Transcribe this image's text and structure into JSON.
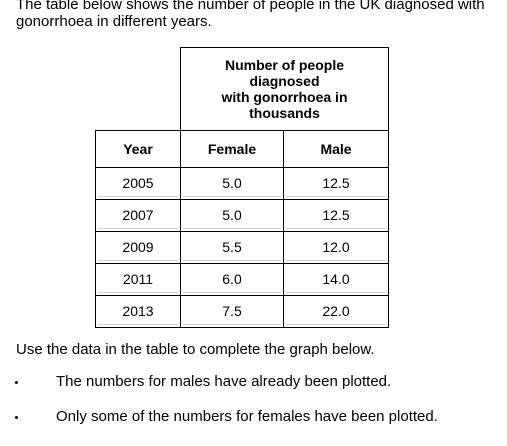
{
  "intro": {
    "line1": "The table below shows the number of people in the UK diagnosed with",
    "line2": "gonorrhoea in different years."
  },
  "table": {
    "group_header": [
      "Number of people",
      "diagnosed",
      "with gonorrhoea in",
      "thousands"
    ],
    "columns": [
      "Year",
      "Female",
      "Male"
    ],
    "rows": [
      [
        "2005",
        "5.0",
        "12.5"
      ],
      [
        "2007",
        "5.0",
        "12.5"
      ],
      [
        "2009",
        "5.5",
        "12.0"
      ],
      [
        "2011",
        "6.0",
        "14.0"
      ],
      [
        "2013",
        "7.5",
        "22.0"
      ]
    ]
  },
  "instruction": "Use the data in the table to complete the graph below.",
  "bullets": [
    "The numbers for males have already been plotted.",
    "Only some of the numbers for females have been plotted."
  ]
}
